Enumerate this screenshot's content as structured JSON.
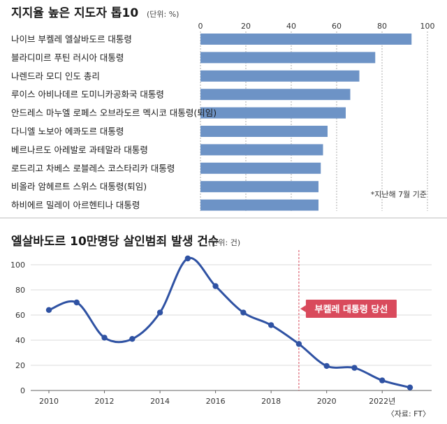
{
  "chart_data": [
    {
      "type": "bar",
      "orientation": "horizontal",
      "title": "지지율 높은 지도자 톱10",
      "unit": "(단위: %)",
      "categories": [
        "나이브 부켈레 엘살바도르 대통령",
        "블라디미르 푸틴 러시아 대통령",
        "나렌드라 모디 인도 총리",
        "루이스 아비나데르 도미니카공화국 대통령",
        "안드레스 마누엘 로페스 오브라도르 멕시코 대통령(퇴임)",
        "다니엘 노보아 에콰도르 대통령",
        "베르나르도 아레발로 과테말라 대통령",
        "로드리고 차베스 로블레스 코스타리카 대통령",
        "비올라 암헤르트 스위스 대통령(퇴임)",
        "하비에르 밀레이 아르헨티나 대통령"
      ],
      "values": [
        93,
        77,
        70,
        66,
        64,
        56,
        54,
        53,
        52,
        52
      ],
      "xlim": [
        0,
        100
      ],
      "xticks": [
        0,
        20,
        40,
        60,
        80,
        100
      ],
      "grid": "vertical-dashed",
      "note": "*지난해 7월 기준",
      "bar_color": "#6d93c6"
    },
    {
      "type": "line",
      "title": "엘살바도르 10만명당 살인범죄 발생 건수",
      "unit": "(단위: 건)",
      "x": [
        2010,
        2011,
        2012,
        2013,
        2014,
        2015,
        2016,
        2017,
        2018,
        2019,
        2020,
        2021,
        2022,
        2023
      ],
      "y": [
        64,
        70,
        42,
        41,
        62,
        105,
        83,
        62,
        52,
        37,
        19.5,
        18,
        8,
        2.4
      ],
      "xticks": [
        "2010",
        "2012",
        "2014",
        "2016",
        "2018",
        "2020",
        "2022년"
      ],
      "yticks": [
        0,
        20,
        40,
        60,
        80,
        100
      ],
      "ylim": [
        0,
        110
      ],
      "xlim": [
        2009.5,
        2023.5
      ],
      "grid": "horizontal",
      "line_color": "#2f52a3",
      "annotation": {
        "x": 2019,
        "label": "부켈레 대통령 당선",
        "color": "#d94a5c"
      },
      "source": "〈자료: FT〉"
    }
  ]
}
